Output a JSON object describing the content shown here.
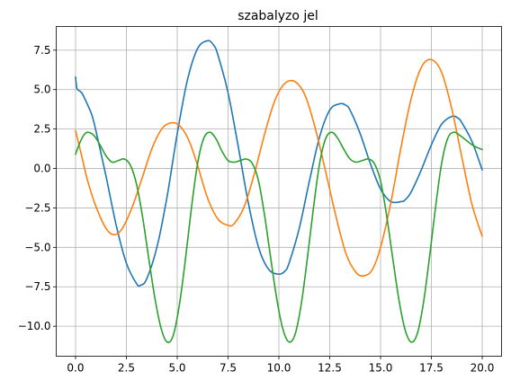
{
  "chart_data": {
    "type": "line",
    "title": "szabalyzo jel",
    "xlabel": "",
    "ylabel": "",
    "xlim": [
      -0.95,
      20.95
    ],
    "ylim": [
      -11.9,
      9.0
    ],
    "grid": true,
    "x_ticks": [
      0.0,
      2.5,
      5.0,
      7.5,
      10.0,
      12.5,
      15.0,
      17.5,
      20.0
    ],
    "x_tick_labels": [
      "0.0",
      "2.5",
      "5.0",
      "7.5",
      "10.0",
      "12.5",
      "15.0",
      "17.5",
      "20.0"
    ],
    "y_ticks": [
      7.5,
      5.0,
      2.5,
      0.0,
      -2.5,
      -5.0,
      -7.5,
      -10.0
    ],
    "y_tick_labels": [
      "7.5",
      "5.0",
      "2.5",
      "0.0",
      "−2.5",
      "−5.0",
      "−7.5",
      "−10.0"
    ],
    "series": [
      {
        "color": "#1f77b4",
        "x": [
          0.0,
          0.05,
          0.1,
          0.3,
          0.5,
          0.8,
          1.0,
          1.5,
          2.0,
          2.5,
          3.0,
          3.2,
          3.5,
          4.0,
          4.5,
          5.0,
          5.5,
          6.0,
          6.5,
          6.8,
          7.0,
          7.5,
          8.0,
          8.5,
          9.0,
          9.5,
          10.0,
          10.3,
          10.5,
          11.0,
          11.5,
          12.0,
          12.5,
          13.0,
          13.3,
          13.5,
          14.0,
          14.5,
          15.0,
          15.5,
          16.0,
          16.2,
          16.5,
          17.0,
          17.5,
          18.0,
          18.5,
          18.8,
          19.0,
          19.5,
          20.0
        ],
        "y": [
          5.8,
          5.2,
          5.0,
          4.8,
          4.3,
          3.4,
          2.4,
          -0.5,
          -3.6,
          -6.0,
          -7.3,
          -7.4,
          -7.0,
          -5.0,
          -1.8,
          2.2,
          5.6,
          7.6,
          8.1,
          7.8,
          7.2,
          4.8,
          1.4,
          -2.2,
          -5.0,
          -6.4,
          -6.7,
          -6.5,
          -6.0,
          -3.8,
          -0.8,
          2.0,
          3.7,
          4.1,
          4.0,
          3.7,
          2.2,
          0.3,
          -1.3,
          -2.1,
          -2.1,
          -2.0,
          -1.5,
          -0.1,
          1.5,
          2.8,
          3.3,
          3.2,
          2.9,
          1.7,
          -0.1
        ]
      },
      {
        "color": "#ff7f0e",
        "x": [
          0.0,
          0.3,
          0.6,
          1.0,
          1.5,
          1.9,
          2.3,
          2.8,
          3.3,
          3.8,
          4.3,
          4.8,
          5.2,
          5.6,
          6.0,
          6.5,
          7.0,
          7.5,
          7.8,
          8.3,
          8.8,
          9.3,
          9.8,
          10.3,
          10.8,
          11.3,
          11.8,
          12.3,
          12.8,
          13.3,
          13.8,
          14.2,
          14.6,
          15.0,
          15.5,
          16.0,
          16.5,
          17.0,
          17.5,
          18.0,
          18.5,
          19.0,
          19.5,
          20.0
        ],
        "y": [
          2.4,
          0.8,
          -0.8,
          -2.4,
          -3.8,
          -4.2,
          -3.8,
          -2.4,
          -0.5,
          1.4,
          2.6,
          2.9,
          2.6,
          1.7,
          0.2,
          -1.9,
          -3.2,
          -3.6,
          -3.5,
          -2.4,
          -0.3,
          2.2,
          4.3,
          5.4,
          5.5,
          4.6,
          2.5,
          -0.2,
          -3.0,
          -5.4,
          -6.6,
          -6.8,
          -6.4,
          -5.0,
          -2.2,
          1.3,
          4.4,
          6.4,
          6.9,
          6.1,
          3.8,
          0.7,
          -2.3,
          -4.3
        ]
      },
      {
        "color": "#2ca02c",
        "x": [
          0.0,
          0.2,
          0.4,
          0.6,
          0.9,
          1.2,
          1.5,
          1.8,
          2.1,
          2.4,
          2.7,
          3.0,
          3.3,
          3.6,
          3.9,
          4.2,
          4.5,
          4.8,
          5.1,
          5.4,
          5.7,
          6.0,
          6.3,
          6.6,
          6.9,
          7.2,
          7.5,
          7.8,
          8.1,
          8.4,
          8.7,
          9.0,
          9.3,
          9.6,
          9.9,
          10.2,
          10.5,
          10.8,
          11.1,
          11.4,
          11.7,
          12.0,
          12.3,
          12.6,
          12.9,
          13.2,
          13.5,
          13.8,
          14.1,
          14.4,
          14.7,
          15.0,
          15.3,
          15.6,
          15.9,
          16.2,
          16.5,
          16.8,
          17.1,
          17.4,
          17.7,
          18.0,
          18.3,
          18.6,
          18.9,
          19.2,
          19.5,
          19.8,
          20.0
        ],
        "y": [
          0.9,
          1.6,
          2.1,
          2.3,
          2.1,
          1.5,
          0.8,
          0.4,
          0.5,
          0.6,
          0.2,
          -1.0,
          -3.1,
          -5.7,
          -8.2,
          -10.1,
          -11.0,
          -10.6,
          -8.7,
          -5.8,
          -2.5,
          0.3,
          1.9,
          2.3,
          1.9,
          1.1,
          0.5,
          0.4,
          0.5,
          0.6,
          0.3,
          -0.8,
          -3.0,
          -5.7,
          -8.3,
          -10.2,
          -11.0,
          -10.5,
          -8.6,
          -5.7,
          -2.5,
          0.3,
          1.9,
          2.3,
          1.9,
          1.2,
          0.6,
          0.4,
          0.5,
          0.6,
          0.3,
          -0.8,
          -3.0,
          -5.7,
          -8.3,
          -10.2,
          -11.0,
          -10.5,
          -8.6,
          -5.7,
          -2.5,
          0.3,
          1.9,
          2.3,
          2.1,
          1.8,
          1.5,
          1.3,
          1.2
        ]
      }
    ]
  }
}
